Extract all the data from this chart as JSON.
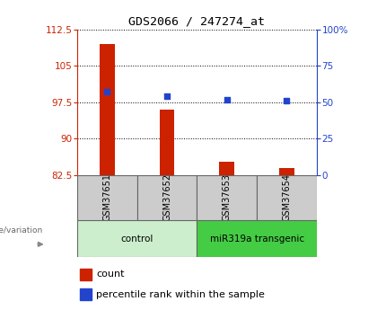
{
  "title": "GDS2066 / 247274_at",
  "samples": [
    "GSM37651",
    "GSM37652",
    "GSM37653",
    "GSM37654"
  ],
  "bar_values": [
    109.5,
    96.0,
    85.2,
    84.0
  ],
  "percentile_values": [
    57,
    54,
    52,
    51
  ],
  "ylim_left": [
    82.5,
    112.5
  ],
  "ylim_right": [
    0,
    100
  ],
  "yticks_left": [
    82.5,
    90.0,
    97.5,
    105.0,
    112.5
  ],
  "yticks_right": [
    0,
    25,
    50,
    75,
    100
  ],
  "ytick_labels_left": [
    "82.5",
    "90",
    "97.5",
    "105",
    "112.5"
  ],
  "ytick_labels_right": [
    "0",
    "25",
    "50",
    "75",
    "100%"
  ],
  "bar_color": "#cc2200",
  "dot_color": "#2244cc",
  "bar_base": 82.5,
  "bar_width": 0.25,
  "groups": [
    {
      "label": "control",
      "samples": [
        0,
        1
      ],
      "color": "#cceecc"
    },
    {
      "label": "miR319a transgenic",
      "samples": [
        2,
        3
      ],
      "color": "#44cc44"
    }
  ],
  "genotype_label": "genotype/variation",
  "legend_bar_label": "count",
  "legend_dot_label": "percentile rank within the sample",
  "grid_color": "#000000",
  "left_axis_color": "#cc2200",
  "right_axis_color": "#2244cc",
  "sample_box_color": "#cccccc",
  "sample_box_edge": "#666666"
}
